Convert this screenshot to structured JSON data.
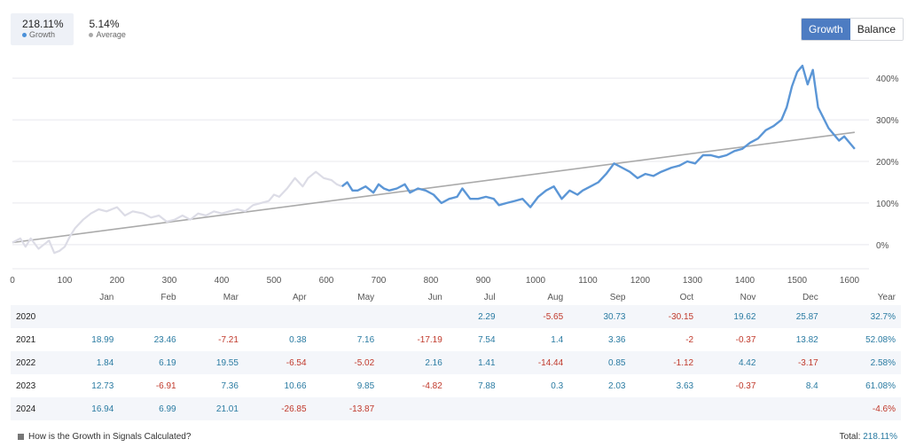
{
  "stats": {
    "growth": {
      "value": "218.11%",
      "label": "Growth",
      "color": "#4a90d9"
    },
    "average": {
      "value": "5.14%",
      "label": "Average",
      "color": "#aaaaaa"
    }
  },
  "toggle": {
    "growth_label": "Growth",
    "balance_label": "Balance"
  },
  "chart_data": {
    "type": "line",
    "x_ticks": [
      "0",
      "100",
      "200",
      "300",
      "400",
      "500",
      "600",
      "700",
      "800",
      "900",
      "1000",
      "1100",
      "1200",
      "1300",
      "1400",
      "1500",
      "1600"
    ],
    "y_ticks": [
      "0%",
      "100%",
      "200%",
      "300%",
      "400%"
    ],
    "xlim": [
      0,
      1620
    ],
    "ylim": [
      -60,
      460
    ],
    "series": [
      {
        "color_faded": "#dcdce6",
        "color": "#5b96d6",
        "faded_until_x": 630,
        "points": [
          [
            0,
            5
          ],
          [
            15,
            15
          ],
          [
            25,
            -5
          ],
          [
            35,
            15
          ],
          [
            50,
            -10
          ],
          [
            60,
            0
          ],
          [
            70,
            10
          ],
          [
            80,
            -20
          ],
          [
            90,
            -15
          ],
          [
            100,
            -5
          ],
          [
            110,
            20
          ],
          [
            120,
            40
          ],
          [
            135,
            60
          ],
          [
            150,
            75
          ],
          [
            165,
            85
          ],
          [
            180,
            80
          ],
          [
            200,
            90
          ],
          [
            215,
            70
          ],
          [
            230,
            80
          ],
          [
            250,
            75
          ],
          [
            265,
            65
          ],
          [
            280,
            70
          ],
          [
            295,
            55
          ],
          [
            310,
            60
          ],
          [
            325,
            70
          ],
          [
            340,
            60
          ],
          [
            355,
            75
          ],
          [
            370,
            70
          ],
          [
            385,
            80
          ],
          [
            400,
            75
          ],
          [
            415,
            80
          ],
          [
            430,
            85
          ],
          [
            445,
            80
          ],
          [
            460,
            95
          ],
          [
            475,
            100
          ],
          [
            490,
            105
          ],
          [
            500,
            120
          ],
          [
            510,
            115
          ],
          [
            525,
            135
          ],
          [
            540,
            160
          ],
          [
            555,
            140
          ],
          [
            565,
            160
          ],
          [
            580,
            175
          ],
          [
            595,
            160
          ],
          [
            610,
            155
          ],
          [
            620,
            145
          ],
          [
            630,
            140
          ],
          [
            640,
            150
          ],
          [
            650,
            130
          ],
          [
            660,
            130
          ],
          [
            675,
            140
          ],
          [
            690,
            125
          ],
          [
            700,
            145
          ],
          [
            710,
            135
          ],
          [
            720,
            130
          ],
          [
            735,
            135
          ],
          [
            750,
            145
          ],
          [
            760,
            125
          ],
          [
            775,
            135
          ],
          [
            790,
            130
          ],
          [
            805,
            120
          ],
          [
            820,
            100
          ],
          [
            835,
            110
          ],
          [
            850,
            115
          ],
          [
            860,
            135
          ],
          [
            875,
            110
          ],
          [
            890,
            110
          ],
          [
            905,
            115
          ],
          [
            920,
            110
          ],
          [
            930,
            95
          ],
          [
            945,
            100
          ],
          [
            960,
            105
          ],
          [
            975,
            110
          ],
          [
            990,
            90
          ],
          [
            1005,
            115
          ],
          [
            1020,
            130
          ],
          [
            1035,
            140
          ],
          [
            1050,
            110
          ],
          [
            1065,
            130
          ],
          [
            1080,
            120
          ],
          [
            1090,
            130
          ],
          [
            1105,
            140
          ],
          [
            1120,
            150
          ],
          [
            1135,
            170
          ],
          [
            1150,
            195
          ],
          [
            1165,
            185
          ],
          [
            1180,
            175
          ],
          [
            1195,
            160
          ],
          [
            1210,
            170
          ],
          [
            1225,
            165
          ],
          [
            1240,
            175
          ],
          [
            1260,
            185
          ],
          [
            1275,
            190
          ],
          [
            1290,
            200
          ],
          [
            1305,
            195
          ],
          [
            1320,
            215
          ],
          [
            1335,
            215
          ],
          [
            1350,
            210
          ],
          [
            1365,
            215
          ],
          [
            1380,
            225
          ],
          [
            1395,
            230
          ],
          [
            1410,
            245
          ],
          [
            1425,
            255
          ],
          [
            1440,
            275
          ],
          [
            1455,
            285
          ],
          [
            1470,
            300
          ],
          [
            1480,
            330
          ],
          [
            1490,
            380
          ],
          [
            1500,
            415
          ],
          [
            1510,
            430
          ],
          [
            1520,
            385
          ],
          [
            1530,
            420
          ],
          [
            1540,
            330
          ],
          [
            1550,
            305
          ],
          [
            1560,
            280
          ],
          [
            1570,
            265
          ],
          [
            1580,
            250
          ],
          [
            1590,
            260
          ],
          [
            1600,
            245
          ],
          [
            1610,
            230
          ]
        ]
      },
      {
        "color": "#aaaaaa",
        "points": [
          [
            0,
            5
          ],
          [
            1610,
            270
          ]
        ]
      }
    ]
  },
  "table": {
    "headers": [
      "",
      "Jan",
      "Feb",
      "Mar",
      "Apr",
      "May",
      "Jun",
      "Jul",
      "Aug",
      "Sep",
      "Oct",
      "Nov",
      "Dec",
      "Year"
    ],
    "rows": [
      {
        "year": "2020",
        "cells": [
          "",
          "",
          "",
          "",
          "",
          "",
          "2.29",
          "-5.65",
          "30.73",
          "-30.15",
          "19.62",
          "25.87",
          "32.7%"
        ]
      },
      {
        "year": "2021",
        "cells": [
          "18.99",
          "23.46",
          "-7.21",
          "0.38",
          "7.16",
          "-17.19",
          "7.54",
          "1.4",
          "3.36",
          "-2",
          "-0.37",
          "13.82",
          "52.08%"
        ]
      },
      {
        "year": "2022",
        "cells": [
          "1.84",
          "6.19",
          "19.55",
          "-6.54",
          "-5.02",
          "2.16",
          "1.41",
          "-14.44",
          "0.85",
          "-1.12",
          "4.42",
          "-3.17",
          "2.58%"
        ]
      },
      {
        "year": "2023",
        "cells": [
          "12.73",
          "-6.91",
          "7.36",
          "10.66",
          "9.85",
          "-4.82",
          "7.88",
          "0.3",
          "2.03",
          "3.63",
          "-0.37",
          "8.4",
          "61.08%"
        ]
      },
      {
        "year": "2024",
        "cells": [
          "16.94",
          "6.99",
          "21.01",
          "-26.85",
          "-13.87",
          "",
          "",
          "",
          "",
          "",
          "",
          "",
          "-4.6%"
        ]
      }
    ]
  },
  "footer": {
    "link_text": "How is the Growth in Signals Calculated?",
    "total_label": "Total:",
    "total_value": "218.11%"
  }
}
